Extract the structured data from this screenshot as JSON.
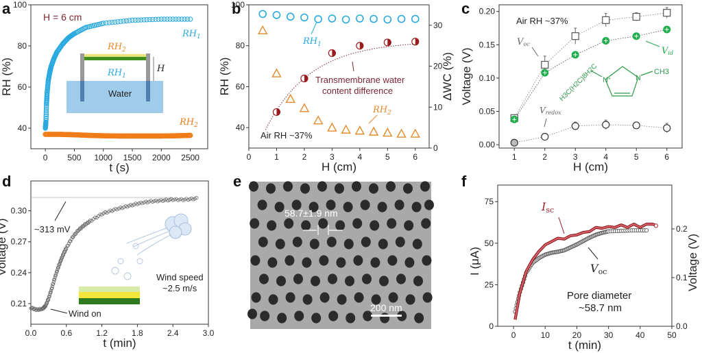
{
  "chart_data": [
    {
      "panel": "a",
      "type": "scatter",
      "title": "",
      "xlabel": "t (s)",
      "ylabel": "RH (%)",
      "xlim": [
        -250,
        2800
      ],
      "ylim": [
        30,
        100
      ],
      "xticks": [
        0,
        500,
        1000,
        1500,
        2000,
        2500
      ],
      "yticks": [
        40,
        60,
        80,
        100
      ],
      "annotations": [
        "H = 6 cm",
        "RH1",
        "RH2"
      ],
      "inset_labels": {
        "top": "RH2",
        "middle": "RH1",
        "height": "H",
        "water": "Water"
      },
      "series": [
        {
          "name": "RH1",
          "color": "#29a9df",
          "x": [
            0,
            10,
            20,
            30,
            50,
            75,
            100,
            150,
            200,
            300,
            400,
            500,
            700,
            1000,
            1500,
            2000,
            2500
          ],
          "y": [
            40,
            43,
            52,
            57,
            63,
            67,
            70,
            74,
            77,
            81,
            84,
            86,
            89,
            91,
            92.5,
            93,
            93
          ]
        },
        {
          "name": "RH2",
          "color": "#f07c19",
          "x": [
            0,
            250,
            500,
            750,
            1000,
            1250,
            1500,
            1750,
            2000,
            2250,
            2500
          ],
          "y": [
            37,
            37,
            36.8,
            36.5,
            36.3,
            36.2,
            36.2,
            36.2,
            36.2,
            36.3,
            36.5
          ]
        }
      ]
    },
    {
      "panel": "b",
      "type": "scatter",
      "xlabel": "H (cm)",
      "ylabel": "RH (%)",
      "y2label": "ΔWC (%)",
      "xlim": [
        0,
        6.5
      ],
      "ylim": [
        30,
        100
      ],
      "y2lim": [
        0,
        35
      ],
      "xticks": [
        0,
        1,
        2,
        3,
        4,
        5,
        6
      ],
      "yticks": [
        40,
        60,
        80,
        100
      ],
      "y2ticks": [
        0,
        10,
        20,
        30
      ],
      "annotations": [
        "RH1",
        "RH2",
        "Transmembrane water",
        "content difference",
        "Air RH ~37%"
      ],
      "series": [
        {
          "name": "RH1",
          "axis": "left",
          "marker": "circle",
          "color": "#29a9df",
          "x": [
            0.5,
            1,
            1.5,
            2,
            2.5,
            3,
            3.5,
            4,
            4.5,
            5,
            5.5,
            6
          ],
          "y": [
            95.5,
            95,
            94.2,
            93.8,
            93,
            93.3,
            92.8,
            93.3,
            93.1,
            92.8,
            93.1,
            93.1
          ]
        },
        {
          "name": "RH2",
          "axis": "left",
          "marker": "triangle",
          "color": "#e58a2a",
          "x": [
            0.5,
            1,
            1.5,
            2,
            2.5,
            3,
            3.5,
            4,
            4.5,
            5,
            5.5,
            6
          ],
          "y": [
            87.5,
            66.5,
            54,
            49.5,
            43.5,
            40,
            39,
            38.5,
            38,
            37.5,
            37,
            37
          ]
        },
        {
          "name": "ΔWC",
          "axis": "right",
          "marker": "half-circle",
          "color": "#9b1c1f",
          "x": [
            1,
            2,
            3,
            4,
            5,
            6
          ],
          "y": [
            8.8,
            17,
            23.2,
            25,
            25.8,
            26
          ]
        }
      ]
    },
    {
      "panel": "c",
      "type": "scatter",
      "xlabel": "H (cm)",
      "ylabel": "Voltage (V)",
      "xlim": [
        0.5,
        6.5
      ],
      "ylim": [
        -0.005,
        0.21
      ],
      "xticks": [
        1,
        2,
        3,
        4,
        5,
        6
      ],
      "yticks": [
        0.0,
        0.05,
        0.1,
        0.15,
        0.2
      ],
      "annotations": [
        "Air RH ~37%",
        "Voc",
        "Vid",
        "Vredox"
      ],
      "molecule": {
        "left": "H3C(H2C)8H2C",
        "n1": "N+",
        "n2": "N",
        "right": "CH3"
      },
      "series": [
        {
          "name": "Voc",
          "marker": "square",
          "color": "#555555",
          "x": [
            1,
            2,
            3,
            4,
            5,
            6
          ],
          "y": [
            0.04,
            0.12,
            0.163,
            0.187,
            0.192,
            0.198
          ],
          "err": [
            0.004,
            0.013,
            0.012,
            0.01,
            0.006,
            0.008
          ]
        },
        {
          "name": "Vid",
          "marker": "circle-plus",
          "color": "#1fae4b",
          "x": [
            1,
            2,
            3,
            4,
            5,
            6
          ],
          "y": [
            0.038,
            0.108,
            0.135,
            0.156,
            0.163,
            0.173
          ]
        },
        {
          "name": "Vredox",
          "marker": "circle",
          "color": "#333333",
          "x": [
            1,
            2,
            3,
            4,
            5,
            6
          ],
          "y": [
            0.003,
            0.012,
            0.028,
            0.03,
            0.029,
            0.025
          ],
          "err": [
            0.002,
            0.003,
            0.006,
            0.007,
            0.005,
            0.007
          ]
        }
      ]
    },
    {
      "panel": "d",
      "type": "scatter",
      "xlabel": "t (min)",
      "ylabel": "Voltage (V)",
      "xlim": [
        0,
        3.0
      ],
      "ylim": [
        0.19,
        0.329
      ],
      "xticks": [
        0.0,
        0.6,
        1.2,
        1.8,
        2.4,
        3.0
      ],
      "xtick_labels": [
        "0.0",
        "0.6",
        "1.2",
        "1.8",
        "2.4",
        "3.0"
      ],
      "yticks": [
        0.21,
        0.24,
        0.27,
        0.3
      ],
      "ytick_labels": [
        "0.21",
        "0.24",
        "0.27",
        "0.30"
      ],
      "reference_line": 0.313,
      "annotations": [
        "~313 mV",
        "Wind on",
        "Wind speed",
        "~2.5 m/s"
      ],
      "series": [
        {
          "name": "Voltage",
          "color": "#555555",
          "x": [
            0,
            0.1,
            0.2,
            0.25,
            0.3,
            0.35,
            0.4,
            0.45,
            0.5,
            0.55,
            0.6,
            0.7,
            0.8,
            0.9,
            1.0,
            1.2,
            1.4,
            1.6,
            1.8,
            2.0,
            2.2,
            2.4,
            2.6,
            2.8
          ],
          "y": [
            0.206,
            0.204,
            0.205,
            0.208,
            0.215,
            0.224,
            0.234,
            0.243,
            0.251,
            0.258,
            0.264,
            0.274,
            0.281,
            0.286,
            0.29,
            0.297,
            0.301,
            0.304,
            0.307,
            0.309,
            0.31,
            0.311,
            0.311,
            0.312
          ]
        }
      ]
    },
    {
      "panel": "f",
      "type": "line",
      "xlabel": "t (min)",
      "ylabel": "I (μA)",
      "y2label": "Voltage (V)",
      "xlim": [
        -5,
        50
      ],
      "ylim": [
        0,
        85
      ],
      "y2lim": [
        0,
        0.29
      ],
      "xticks": [
        0,
        10,
        20,
        30,
        40,
        50
      ],
      "yticks": [
        0,
        25,
        50,
        75
      ],
      "y2ticks": [
        0.0,
        0.1,
        0.2
      ],
      "y2tick_labels": [
        "0.0",
        "0.1",
        "0.2"
      ],
      "annotations": [
        "Isc",
        "Voc",
        "Pore diameter",
        "~58.7 nm"
      ],
      "series": [
        {
          "name": "Isc",
          "axis": "left",
          "color": "#b42a2f",
          "x": [
            0.5,
            2,
            4,
            6,
            8,
            10,
            12,
            14,
            16,
            18,
            20,
            22,
            24,
            26,
            28,
            30,
            32,
            34,
            36,
            38,
            40,
            42,
            44,
            45
          ],
          "y": [
            4,
            20,
            33,
            40,
            45,
            49,
            51,
            53,
            52.5,
            54.5,
            55,
            56.5,
            57,
            59.5,
            59,
            60,
            59.5,
            61,
            59.5,
            61.5,
            59.5,
            61.5,
            61.5,
            60.5
          ]
        },
        {
          "name": "Voc",
          "axis": "right",
          "color": "#555555",
          "x": [
            0.5,
            2,
            4,
            6,
            8,
            10,
            12,
            14,
            16,
            18,
            20,
            22,
            24,
            26,
            28,
            30,
            34,
            38,
            42
          ],
          "y": [
            0.03,
            0.07,
            0.11,
            0.13,
            0.14,
            0.147,
            0.151,
            0.153,
            0.156,
            0.162,
            0.168,
            0.175,
            0.182,
            0.188,
            0.192,
            0.195,
            0.196,
            0.197,
            0.197
          ]
        }
      ]
    }
  ],
  "panel_labels": [
    "a",
    "b",
    "c",
    "d",
    "e",
    "f"
  ],
  "panel_e": {
    "type": "SEM micrograph",
    "measurement": "58.7±1.9 nm",
    "scale_bar": "200 nm"
  },
  "text": {
    "a_H": "H = 6 cm",
    "a_rh1": "RH",
    "a_rh2": "RH",
    "a_water": "Water",
    "a_Hlab": "H",
    "b_rh1": "RH",
    "b_rh2": "RH",
    "b_tm1": "Transmembrane water",
    "b_tm2": "content difference",
    "b_air": "Air RH ~37%",
    "c_air": "Air RH ~37%",
    "c_voc": "V",
    "c_vid": "V",
    "c_vredox": "V",
    "c_sub_oc": "oc",
    "c_sub_id": "id",
    "c_sub_redox": "redox",
    "mol_left": "H3C(H2C)8H2C",
    "mol_n1": "N",
    "mol_n2": "N",
    "mol_right": "CH3",
    "d_313": "~313 mV",
    "d_windon": "Wind on",
    "d_ws1": "Wind speed",
    "d_ws2": "~2.5 m/s",
    "f_isc": "I",
    "f_isc_sub": "sc",
    "f_voc": "V",
    "f_voc_sub": "oc",
    "f_pore1": "Pore diameter",
    "f_pore2": "~58.7 nm",
    "e_meas": "58.7±1.9 nm",
    "e_scale": "200 nm",
    "sub1": "1",
    "sub2": "2"
  }
}
